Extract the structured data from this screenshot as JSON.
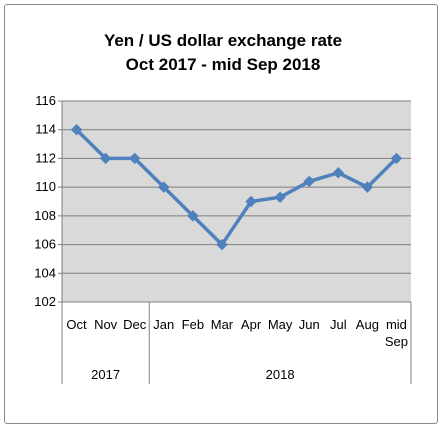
{
  "chart_data": {
    "type": "line",
    "title": "Yen / US dollar exchange rate",
    "subtitle": "Oct 2017 - mid Sep 2018",
    "categories": [
      "Oct",
      "Nov",
      "Dec",
      "Jan",
      "Feb",
      "Mar",
      "Apr",
      "May",
      "Jun",
      "Jul",
      "Aug",
      "mid Sep"
    ],
    "year_groups": [
      {
        "label": "2017",
        "count": 3
      },
      {
        "label": "2018",
        "count": 9
      }
    ],
    "series": [
      {
        "values": [
          114,
          112,
          112,
          110,
          108,
          106,
          109,
          109.3,
          110.4,
          111,
          110,
          112
        ],
        "color": "#4f81bd"
      }
    ],
    "ylim": [
      102,
      116
    ],
    "yticks": [
      102,
      104,
      106,
      108,
      110,
      112,
      114,
      116
    ],
    "grid": true,
    "plot_background": "#d9d9d9",
    "legend": "none"
  }
}
